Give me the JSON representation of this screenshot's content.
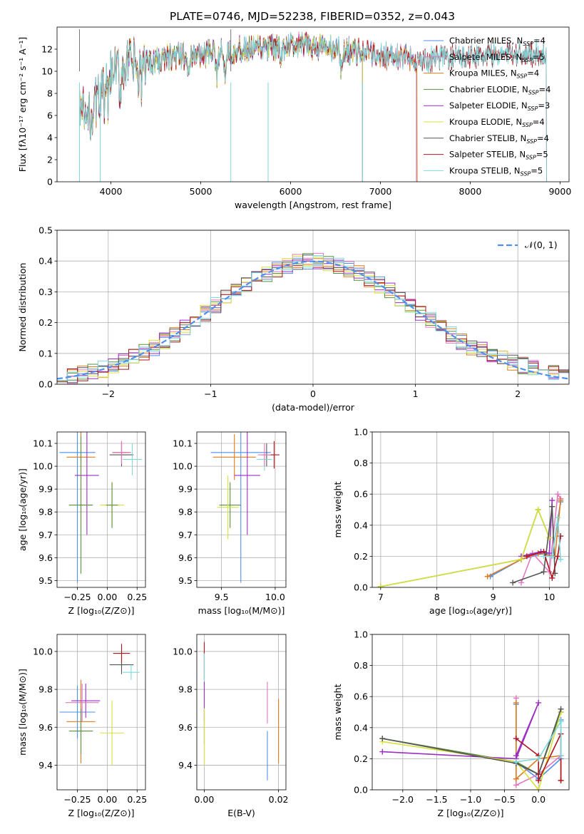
{
  "figure_title": "PLATE=0746, MJD=52238, FIBERID=0352, z=0.043",
  "chart_data": [
    {
      "id": "spectrum",
      "type": "line",
      "title": "PLATE=0746, MJD=52238, FIBERID=0352, z=0.043",
      "xlabel": "wavelength [Angstrom, rest frame]",
      "ylabel": "Flux [fλ10⁻¹⁷ erg cm⁻² s⁻¹ A⁻¹]",
      "xlim": [
        3400,
        9100
      ],
      "ylim": [
        0,
        14
      ],
      "xticks": [
        4000,
        5000,
        6000,
        7000,
        8000,
        9000
      ],
      "yticks": [
        0,
        2,
        4,
        6,
        8,
        10,
        12
      ],
      "grid": false,
      "legend_position": "upper right",
      "continuum_x": [
        3650,
        3750,
        3850,
        3950,
        4050,
        4150,
        4300,
        4500,
        4800,
        5000,
        5300,
        5600,
        5900,
        6100,
        6300,
        6500,
        6700,
        6900,
        7100,
        7300,
        7500,
        7700,
        7900,
        8100,
        8300,
        8500,
        8850
      ],
      "continuum_y": [
        6.8,
        5.5,
        7.5,
        9.2,
        10.0,
        10.5,
        10.8,
        11.0,
        11.4,
        11.5,
        11.8,
        12.0,
        12.2,
        12.3,
        12.2,
        12.0,
        11.8,
        11.6,
        11.4,
        11.2,
        11.0,
        11.2,
        11.4,
        11.5,
        11.5,
        11.6,
        11.7
      ],
      "absorption_lines": [
        3934,
        3969,
        4101,
        4304,
        4340,
        4861,
        5175,
        5270,
        5890,
        6563
      ],
      "spikes_down": [
        [
          3650,
          0.0
        ],
        [
          3880,
          0.0
        ],
        [
          5335,
          0.0
        ],
        [
          5750,
          0.0
        ],
        [
          6800,
          0.0
        ]
      ],
      "spikes_up": [
        [
          3650,
          13.8
        ],
        [
          5335,
          13.8
        ]
      ],
      "series": [
        {
          "name": "Chabrier MILES, N$_{SSP}$=4",
          "legend": "Chabrier MILES, N",
          "sub": "SSP",
          "suffix": "=4",
          "color": "#4f8ff0",
          "end_x": 7400
        },
        {
          "name": "Salpeter MILES, N$_{SSP}$=5",
          "legend": "Salpeter MILES, N",
          "sub": "SSP",
          "suffix": "=5",
          "color": "#e377c2",
          "end_x": 7400
        },
        {
          "name": "Kroupa MILES, N$_{SSP}$=4",
          "legend": "Kroupa MILES, N",
          "sub": "SSP",
          "suffix": "=4",
          "color": "#e07b1a",
          "end_x": 7410
        },
        {
          "name": "Chabrier ELODIE, N$_{SSP}$=4",
          "legend": "Chabrier ELODIE, N",
          "sub": "SSP",
          "suffix": "=4",
          "color": "#5a8f3e",
          "end_x": 6800
        },
        {
          "name": "Salpeter ELODIE, N$_{SSP}$=3",
          "legend": "Salpeter ELODIE, N",
          "sub": "SSP",
          "suffix": "=3",
          "color": "#9b2fc4",
          "end_x": 6800
        },
        {
          "name": "Kroupa ELODIE, N$_{SSP}$=4",
          "legend": "Kroupa ELODIE, N",
          "sub": "SSP",
          "suffix": "=4",
          "color": "#d8e03a",
          "end_x": 6800
        },
        {
          "name": "Chabrier STELIB, N$_{SSP}$=4",
          "legend": "Chabrier STELIB, N",
          "sub": "SSP",
          "suffix": "=4",
          "color": "#555555",
          "end_x": 8850
        },
        {
          "name": "Salpeter STELIB, N$_{SSP}$=5",
          "legend": "Salpeter STELIB, N",
          "sub": "SSP",
          "suffix": "=5",
          "color": "#b0141e",
          "end_x": 8850
        },
        {
          "name": "Kroupa STELIB, N$_{SSP}$=5",
          "legend": "Kroupa STELIB, N",
          "sub": "SSP",
          "suffix": "=5",
          "color": "#7fd9dc",
          "end_x": 8850
        }
      ]
    },
    {
      "id": "residuals",
      "type": "line",
      "xlabel": "(data-model)/error",
      "ylabel": "Normed distribution",
      "xlim": [
        -2.5,
        2.5
      ],
      "ylim": [
        0,
        0.5
      ],
      "xticks": [
        -2,
        -1,
        0,
        1,
        2
      ],
      "xtick_labels": [
        "−2",
        "−1",
        "0",
        "1",
        "2"
      ],
      "yticks": [
        0.0,
        0.1,
        0.2,
        0.3,
        0.4,
        0.5
      ],
      "ytick_labels": [
        "0.0",
        "0.1",
        "0.2",
        "0.3",
        "0.4",
        "0.5"
      ],
      "grid": true,
      "legend_position": "upper right",
      "legend_label": "𝒩(0, 1)",
      "gaussian_color": "#4f8ff0",
      "bin_width": 0.1,
      "bin_start": -2.5,
      "step_colors": [
        "#4f8ff0",
        "#e377c2",
        "#e07b1a",
        "#5a8f3e",
        "#9b2fc4",
        "#d8e03a",
        "#555555",
        "#b0141e",
        "#7fd9dc"
      ]
    },
    {
      "id": "age_vs_Z",
      "type": "scatter",
      "xlabel": "Z [log₁₀(Z/Z⊙)]",
      "ylabel": "age  [log₁₀(age/yr)]",
      "xlim": [
        -0.42,
        0.32
      ],
      "ylim": [
        9.47,
        10.15
      ],
      "xticks": [
        -0.25,
        0.0,
        0.25
      ],
      "xtick_labels": [
        "−0.25",
        "0.00",
        "0.25"
      ],
      "yticks": [
        9.5,
        9.6,
        9.7,
        9.8,
        9.9,
        10.0,
        10.1
      ],
      "ytick_labels": [
        "9.5",
        "9.6",
        "9.7",
        "9.8",
        "9.9",
        "10.0",
        "10.1"
      ],
      "grid": true,
      "points": [
        {
          "x": -0.25,
          "y": 10.06,
          "xerr": 0.15,
          "yerr": 0.57,
          "color": "#4f8ff0"
        },
        {
          "x": -0.22,
          "y": 10.04,
          "xerr": 0.12,
          "yerr": 0.3,
          "color": "#e07b1a"
        },
        {
          "x": -0.17,
          "y": 9.96,
          "xerr": 0.1,
          "yerr": 0.26,
          "color": "#9b2fc4"
        },
        {
          "x": -0.22,
          "y": 9.83,
          "xerr": 0.1,
          "yerr": 0.3,
          "color": "#5a8f3e"
        },
        {
          "x": 0.04,
          "y": 9.83,
          "xerr": 0.1,
          "yerr": 0.1,
          "color": "#d8e03a"
        },
        {
          "x": 0.04,
          "y": 9.83,
          "xerr": 0.05,
          "yerr": 0.1,
          "color": "#5a8f3e"
        },
        {
          "x": 0.12,
          "y": 10.05,
          "xerr": 0.1,
          "yerr": 0.05,
          "color": "#555555"
        },
        {
          "x": 0.12,
          "y": 10.06,
          "xerr": 0.07,
          "yerr": 0.05,
          "color": "#b0141e"
        },
        {
          "x": 0.21,
          "y": 10.03,
          "xerr": 0.08,
          "yerr": 0.07,
          "color": "#7fd9dc"
        },
        {
          "x": 0.12,
          "y": 10.06,
          "xerr": 0.08,
          "yerr": 0.05,
          "color": "#e377c2"
        }
      ]
    },
    {
      "id": "age_vs_mass",
      "type": "scatter",
      "xlabel": "mass [log₁₀(M/M⊙)]",
      "ylabel": "",
      "xlim": [
        9.27,
        10.1
      ],
      "ylim": [
        9.47,
        10.15
      ],
      "xticks": [
        9.5,
        10.0
      ],
      "xtick_labels": [
        "9.5",
        "10.0"
      ],
      "yticks": [
        9.5,
        9.6,
        9.7,
        9.8,
        9.9,
        10.0,
        10.1
      ],
      "ytick_labels": [
        "9.5",
        "9.6",
        "9.7",
        "9.8",
        "9.9",
        "10.0",
        "10.1"
      ],
      "grid": true,
      "points": [
        {
          "x": 9.68,
          "y": 10.06,
          "xerr": 0.28,
          "yerr": 0.57,
          "color": "#4f8ff0"
        },
        {
          "x": 9.62,
          "y": 10.04,
          "xerr": 0.2,
          "yerr": 0.1,
          "color": "#e07b1a"
        },
        {
          "x": 9.74,
          "y": 9.96,
          "xerr": 0.12,
          "yerr": 0.26,
          "color": "#9b2fc4"
        },
        {
          "x": 9.58,
          "y": 9.83,
          "xerr": 0.1,
          "yerr": 0.1,
          "color": "#5a8f3e"
        },
        {
          "x": 9.56,
          "y": 9.82,
          "xerr": 0.1,
          "yerr": 0.14,
          "color": "#d8e03a"
        },
        {
          "x": 9.92,
          "y": 10.05,
          "xerr": 0.05,
          "yerr": 0.05,
          "color": "#555555"
        },
        {
          "x": 9.99,
          "y": 10.05,
          "xerr": 0.05,
          "yerr": 0.06,
          "color": "#b0141e"
        },
        {
          "x": 9.9,
          "y": 10.03,
          "xerr": 0.07,
          "yerr": 0.05,
          "color": "#7fd9dc"
        },
        {
          "x": 9.9,
          "y": 10.05,
          "xerr": 0.06,
          "yerr": 0.05,
          "color": "#e377c2"
        }
      ]
    },
    {
      "id": "weight_vs_age",
      "type": "line",
      "xlabel": "age  [log₁₀(age/yr)]",
      "ylabel": "mass weight",
      "xlim": [
        6.85,
        10.35
      ],
      "ylim": [
        0,
        1
      ],
      "xticks": [
        7,
        8,
        9,
        10
      ],
      "xtick_labels": [
        "7",
        "8",
        "9",
        "10"
      ],
      "yticks": [
        0.0,
        0.2,
        0.4,
        0.6,
        0.8,
        1.0
      ],
      "ytick_labels": [
        "0.0",
        "0.2",
        "0.4",
        "0.6",
        "0.8",
        "1.0"
      ],
      "grid": true,
      "series": [
        {
          "name": "Chabrier MILES",
          "color": "#4f8ff0",
          "x": [
            8.95,
            9.5,
            9.9,
            10.05,
            10.2
          ],
          "y": [
            0.07,
            0.18,
            0.22,
            0.2,
            0.55
          ]
        },
        {
          "name": "Salpeter MILES",
          "color": "#e377c2",
          "x": [
            9.5,
            9.7,
            10.0,
            10.15,
            10.2
          ],
          "y": [
            0.03,
            0.22,
            0.1,
            0.6,
            0.57
          ]
        },
        {
          "name": "Kroupa MILES",
          "color": "#e07b1a",
          "x": [
            8.9,
            9.5,
            9.8,
            10.1,
            10.2
          ],
          "y": [
            0.07,
            0.18,
            0.22,
            0.2,
            0.56
          ]
        },
        {
          "name": "Chabrier ELODIE",
          "color": "#5a8f3e",
          "x": [
            7.0,
            9.5,
            9.8,
            10.0
          ],
          "y": [
            0.005,
            0.18,
            0.5,
            0.32
          ]
        },
        {
          "name": "Salpeter ELODIE",
          "color": "#9b2fc4",
          "x": [
            9.5,
            9.85,
            10.0,
            10.05
          ],
          "y": [
            0.2,
            0.23,
            0.22,
            0.56
          ]
        },
        {
          "name": "Kroupa ELODIE",
          "color": "#d8e03a",
          "x": [
            7.0,
            9.5,
            9.8,
            10.0
          ],
          "y": [
            0.005,
            0.18,
            0.5,
            0.32
          ]
        },
        {
          "name": "Chabrier STELIB",
          "color": "#555555",
          "x": [
            9.35,
            9.9,
            10.05,
            10.1
          ],
          "y": [
            0.03,
            0.1,
            0.52,
            0.09
          ]
        },
        {
          "name": "Salpeter STELIB",
          "color": "#b0141e",
          "x": [
            9.6,
            9.9,
            10.05,
            10.15,
            10.2
          ],
          "y": [
            0.2,
            0.23,
            0.06,
            0.2,
            0.33
          ]
        },
        {
          "name": "Kroupa STELIB",
          "color": "#7fd9dc",
          "x": [
            9.9,
            10.05,
            10.15,
            10.2
          ],
          "y": [
            0.2,
            0.2,
            0.45,
            0.18
          ]
        }
      ]
    },
    {
      "id": "mass_vs_Z",
      "type": "scatter",
      "xlabel": "Z [log₁₀(Z/Z⊙)]",
      "ylabel": "mass [log₁₀(M/M⊙)]",
      "xlim": [
        -0.42,
        0.32
      ],
      "ylim": [
        9.27,
        10.09
      ],
      "xticks": [
        -0.25,
        0.0,
        0.25
      ],
      "xtick_labels": [
        "−0.25",
        "0.00",
        "0.25"
      ],
      "yticks": [
        9.4,
        9.6,
        9.8,
        10.0
      ],
      "ytick_labels": [
        "9.4",
        "9.6",
        "9.8",
        "10.0"
      ],
      "grid": true,
      "points": [
        {
          "x": -0.25,
          "y": 9.68,
          "xerr": 0.15,
          "yerr": 0.14,
          "color": "#4f8ff0"
        },
        {
          "x": -0.22,
          "y": 9.63,
          "xerr": 0.12,
          "yerr": 0.22,
          "color": "#e07b1a"
        },
        {
          "x": -0.18,
          "y": 9.74,
          "xerr": 0.12,
          "yerr": 0.09,
          "color": "#9b2fc4"
        },
        {
          "x": -0.21,
          "y": 9.73,
          "xerr": 0.14,
          "yerr": 0.1,
          "color": "#e377c2"
        },
        {
          "x": -0.22,
          "y": 9.58,
          "xerr": 0.1,
          "yerr": 0.12,
          "color": "#5a8f3e"
        },
        {
          "x": 0.04,
          "y": 9.57,
          "xerr": 0.1,
          "yerr": 0.17,
          "color": "#d8e03a"
        },
        {
          "x": 0.12,
          "y": 9.93,
          "xerr": 0.1,
          "yerr": 0.05,
          "color": "#555555"
        },
        {
          "x": 0.12,
          "y": 9.99,
          "xerr": 0.07,
          "yerr": 0.05,
          "color": "#b0141e"
        },
        {
          "x": 0.2,
          "y": 9.89,
          "xerr": 0.07,
          "yerr": 0.04,
          "color": "#7fd9dc"
        }
      ]
    },
    {
      "id": "mass_vs_ebv",
      "type": "scatter",
      "xlabel": "E(B-V)",
      "ylabel": "",
      "xlim": [
        -0.002,
        0.022
      ],
      "ylim": [
        9.27,
        10.09
      ],
      "xticks": [
        0.0,
        0.02
      ],
      "xtick_labels": [
        "0.00",
        "0.02"
      ],
      "yticks": [
        9.4,
        9.6,
        9.8,
        10.0
      ],
      "ytick_labels": [
        "9.4",
        "9.6",
        "9.8",
        "10.0"
      ],
      "grid": true,
      "points": [
        {
          "x": 0.0,
          "y": 9.95,
          "xerr": 0.0,
          "yerr": 0.1,
          "color": "#b0141e"
        },
        {
          "x": 0.0,
          "y": 9.9,
          "xerr": 0.0,
          "yerr": 0.09,
          "color": "#7fd9dc"
        },
        {
          "x": 0.0,
          "y": 9.74,
          "xerr": 0.0,
          "yerr": 0.1,
          "color": "#9b2fc4"
        },
        {
          "x": 0.0,
          "y": 9.58,
          "xerr": 0.0,
          "yerr": 0.07,
          "color": "#5a8f3e"
        },
        {
          "x": 0.0,
          "y": 9.55,
          "xerr": 0.0,
          "yerr": 0.15,
          "color": "#d8e03a"
        },
        {
          "x": 0.017,
          "y": 9.73,
          "xerr": 0.0,
          "yerr": 0.11,
          "color": "#e377c2"
        },
        {
          "x": 0.017,
          "y": 9.45,
          "xerr": 0.0,
          "yerr": 0.13,
          "color": "#4f8ff0"
        },
        {
          "x": 0.02,
          "y": 9.58,
          "xerr": 0.0,
          "yerr": 0.17,
          "color": "#e07b1a"
        }
      ]
    },
    {
      "id": "weight_vs_Z",
      "type": "line",
      "xlabel": "Z [log₁₀(Z/Z⊙)]",
      "ylabel": "mass weight",
      "xlim": [
        -2.45,
        0.45
      ],
      "ylim": [
        0,
        1
      ],
      "xticks": [
        -2.0,
        -1.5,
        -1.0,
        -0.5,
        0.0
      ],
      "xtick_labels": [
        "−2.0",
        "−1.5",
        "−1.0",
        "−0.5",
        "0.0"
      ],
      "yticks": [
        0.0,
        0.2,
        0.4,
        0.6,
        0.8,
        1.0
      ],
      "ytick_labels": [
        "0.0",
        "0.2",
        "0.4",
        "0.6",
        "0.8",
        "1.0"
      ],
      "grid": true,
      "series": [
        {
          "name": "Chabrier MILES",
          "color": "#4f8ff0",
          "x": [
            -0.33,
            -0.33,
            0.0,
            0.33,
            0.33
          ],
          "y": [
            0.55,
            0.18,
            0.07,
            0.2,
            0.45
          ]
        },
        {
          "name": "Salpeter MILES",
          "color": "#e377c2",
          "x": [
            -0.33,
            -0.33,
            0.0,
            0.33
          ],
          "y": [
            0.59,
            0.03,
            0.1,
            0.22
          ]
        },
        {
          "name": "Kroupa MILES",
          "color": "#e07b1a",
          "x": [
            -0.33,
            -0.33,
            0.0,
            0.33,
            0.33
          ],
          "y": [
            0.56,
            0.07,
            0.2,
            0.22,
            0.06
          ]
        },
        {
          "name": "Chabrier ELODIE",
          "color": "#5a8f3e",
          "x": [
            -2.3,
            -0.33,
            0.0,
            0.33
          ],
          "y": [
            0.33,
            0.18,
            0.1,
            0.5
          ]
        },
        {
          "name": "Salpeter ELODIE",
          "color": "#9b2fc4",
          "x": [
            -2.3,
            -0.33,
            0.0,
            -0.33
          ],
          "y": [
            0.245,
            0.2,
            0.56,
            0.22
          ]
        },
        {
          "name": "Kroupa ELODIE",
          "color": "#d8e03a",
          "x": [
            -2.3,
            -0.33,
            0.0,
            0.33
          ],
          "y": [
            0.31,
            0.18,
            0.0,
            0.5
          ]
        },
        {
          "name": "Chabrier STELIB",
          "color": "#555555",
          "x": [
            -2.3,
            -0.33,
            0.0,
            0.33
          ],
          "y": [
            0.33,
            0.17,
            0.1,
            0.52
          ]
        },
        {
          "name": "Salpeter STELIB",
          "color": "#b0141e",
          "x": [
            -0.33,
            0.0,
            0.0,
            0.33,
            0.33
          ],
          "y": [
            0.33,
            0.22,
            0.06,
            0.36,
            0.06
          ]
        },
        {
          "name": "Kroupa STELIB",
          "color": "#7fd9dc",
          "x": [
            -0.33,
            0.0,
            0.33,
            0.33
          ],
          "y": [
            0.18,
            0.2,
            0.44,
            0.22
          ]
        }
      ]
    }
  ]
}
